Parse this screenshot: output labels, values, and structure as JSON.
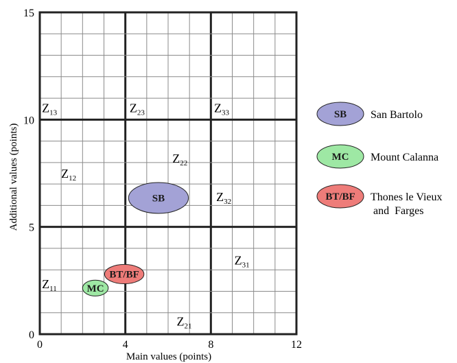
{
  "chart_data": {
    "type": "scatter",
    "title": "",
    "xlabel": "Main values (points)",
    "ylabel": "Additional values (points)",
    "xlim": [
      0,
      12
    ],
    "ylim": [
      0,
      15
    ],
    "x_ticks": [
      "0",
      "4",
      "8",
      "12"
    ],
    "y_ticks": [
      "0",
      "5",
      "10",
      "15"
    ],
    "minor_grid_step": 1,
    "major_grid_step_x": 4,
    "major_grid_step_y": 5,
    "grid": true,
    "zones": [
      {
        "label": "Z",
        "sub": "13",
        "x": 0.1,
        "y": 10.35
      },
      {
        "label": "Z",
        "sub": "23",
        "x": 4.2,
        "y": 10.35
      },
      {
        "label": "Z",
        "sub": "33",
        "x": 8.15,
        "y": 10.35
      },
      {
        "label": "Z",
        "sub": "22",
        "x": 6.2,
        "y": 8.0
      },
      {
        "label": "Z",
        "sub": "12",
        "x": 1.0,
        "y": 7.3
      },
      {
        "label": "Z",
        "sub": "32",
        "x": 8.25,
        "y": 6.2
      },
      {
        "label": "Z",
        "sub": "31",
        "x": 9.1,
        "y": 3.25
      },
      {
        "label": "Z",
        "sub": "11",
        "x": 0.1,
        "y": 2.15
      },
      {
        "label": "Z",
        "sub": "21",
        "x": 6.4,
        "y": 0.4
      }
    ],
    "sites": [
      {
        "code": "SB",
        "name": "San Bartolo",
        "cx": 5.55,
        "cy": 6.35,
        "rx": 1.4,
        "ry": 0.72,
        "color": "#a3a2d6"
      },
      {
        "code": "BT/BF",
        "name": "Thones le Vieux and Farges",
        "cx": 3.95,
        "cy": 2.8,
        "rx": 0.92,
        "ry": 0.45,
        "color": "#ee7c79"
      },
      {
        "code": "MC",
        "name": "Mount Calanna",
        "cx": 2.6,
        "cy": 2.15,
        "rx": 0.6,
        "ry": 0.37,
        "color": "#9ee8a4"
      }
    ]
  },
  "legend": {
    "items": [
      {
        "code": "SB",
        "lines": [
          "San Bartolo"
        ],
        "color": "#a3a2d6"
      },
      {
        "code": "MC",
        "lines": [
          "Mount Calanna"
        ],
        "color": "#9ee8a4"
      },
      {
        "code": "BT/BF",
        "lines": [
          "Thones le Vieux",
          " and  Farges"
        ],
        "color": "#ee7c79"
      }
    ]
  }
}
